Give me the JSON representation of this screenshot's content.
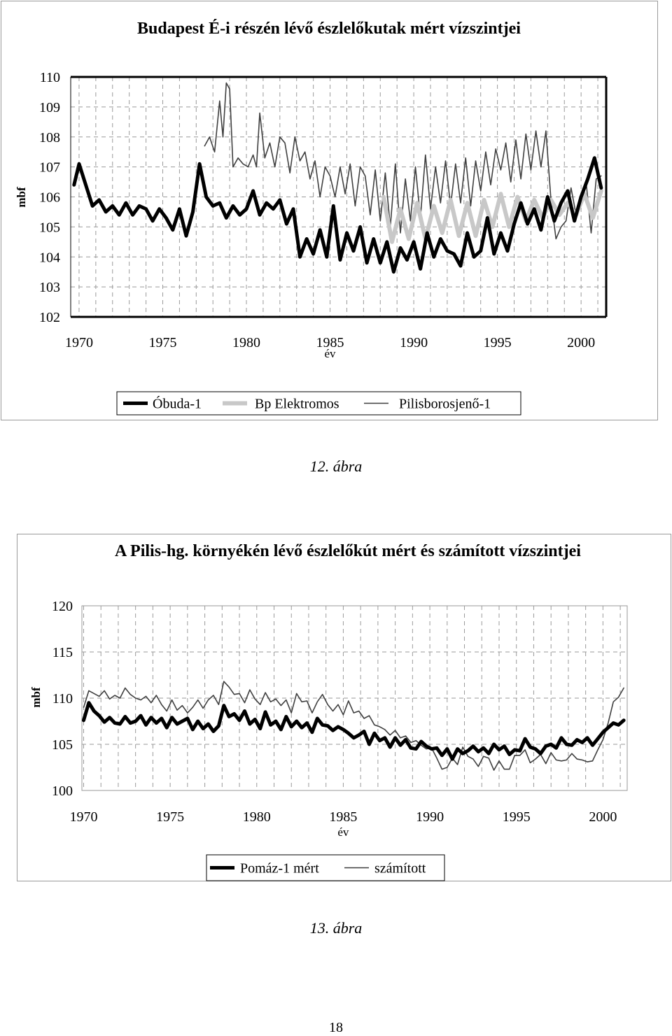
{
  "charts": [
    {
      "title": "Budapest É-i részén lévő észlelőkutak mért vízszintjei",
      "caption": "12. ábra",
      "chart_data": {
        "type": "line",
        "title": "Budapest É-i részén lévő észlelőkutak mért vízszintjei",
        "xlabel": "év",
        "ylabel": "mbf",
        "xlim": [
          1969.5,
          2001.5
        ],
        "ylim": [
          102,
          110
        ],
        "xticks": [
          1970,
          1975,
          1980,
          1985,
          1990,
          1995,
          2000
        ],
        "yticks": [
          102,
          103,
          104,
          105,
          106,
          107,
          108,
          109,
          110
        ],
        "grid": true,
        "legend": "bottom",
        "series": [
          {
            "name": "Óbuda-1",
            "style": "thick-black",
            "x": [
              1969.7,
              1970.0,
              1970.4,
              1970.8,
              1971.2,
              1971.6,
              1972.0,
              1972.4,
              1972.8,
              1973.2,
              1973.6,
              1974.0,
              1974.4,
              1974.8,
              1975.2,
              1975.6,
              1976.0,
              1976.4,
              1976.8,
              1977.2,
              1977.6,
              1978.0,
              1978.4,
              1978.8,
              1979.2,
              1979.6,
              1980.0,
              1980.4,
              1980.8,
              1981.2,
              1981.6,
              1982.0,
              1982.4,
              1982.8,
              1983.2,
              1983.6,
              1984.0,
              1984.4,
              1984.8,
              1985.2,
              1985.6,
              1986.0,
              1986.4,
              1986.8,
              1987.2,
              1987.6,
              1988.0,
              1988.4,
              1988.8,
              1989.2,
              1989.6,
              1990.0,
              1990.4,
              1990.8,
              1991.2,
              1991.6,
              1992.0,
              1992.4,
              1992.8,
              1993.2,
              1993.6,
              1994.0,
              1994.4,
              1994.8,
              1995.2,
              1995.6,
              1996.0,
              1996.4,
              1996.8,
              1997.2,
              1997.6,
              1998.0,
              1998.4,
              1998.8,
              1999.2,
              1999.6,
              2000.0,
              2000.4,
              2000.8,
              2001.2
            ],
            "values": [
              106.4,
              107.1,
              106.4,
              105.7,
              105.9,
              105.5,
              105.7,
              105.4,
              105.8,
              105.4,
              105.7,
              105.6,
              105.2,
              105.6,
              105.3,
              104.9,
              105.6,
              104.7,
              105.5,
              107.1,
              106.0,
              105.7,
              105.8,
              105.3,
              105.7,
              105.4,
              105.6,
              106.2,
              105.4,
              105.8,
              105.6,
              105.9,
              105.1,
              105.6,
              104.0,
              104.6,
              104.1,
              104.9,
              104.0,
              105.7,
              103.9,
              104.8,
              104.2,
              105.0,
              103.8,
              104.6,
              103.8,
              104.5,
              103.5,
              104.3,
              103.9,
              104.5,
              103.6,
              104.8,
              104.0,
              104.6,
              104.2,
              104.1,
              103.7,
              104.8,
              104.0,
              104.2,
              105.3,
              104.1,
              104.8,
              104.2,
              105.1,
              105.8,
              105.1,
              105.6,
              104.9,
              106.0,
              105.2,
              105.8,
              106.2,
              105.2,
              106.0,
              106.6,
              107.3,
              106.3
            ]
          },
          {
            "name": "Bp Elektromos",
            "style": "thick-gray",
            "x": [
              1988.2,
              1988.7,
              1989.2,
              1989.7,
              1990.2,
              1990.7,
              1991.2,
              1991.7,
              1992.2,
              1992.7,
              1993.2,
              1993.7,
              1994.2,
              1994.7,
              1995.2,
              1995.7,
              1996.2,
              1996.7,
              1997.2,
              1997.7,
              1998.2,
              1998.7,
              1999.2,
              1999.7,
              2000.2,
              2000.7,
              2001.2
            ],
            "values": [
              106.0,
              104.5,
              105.6,
              104.6,
              105.8,
              104.6,
              105.7,
              104.8,
              105.9,
              104.7,
              105.8,
              104.7,
              105.9,
              105.0,
              106.1,
              105.0,
              106.0,
              105.2,
              105.9,
              105.3,
              105.9,
              105.4,
              105.8,
              105.4,
              106.1,
              105.3,
              106.2
            ]
          },
          {
            "name": "Pilisborosjenő-1",
            "style": "thin-dark",
            "x": [
              1977.5,
              1977.8,
              1978.1,
              1978.4,
              1978.6,
              1978.8,
              1979.0,
              1979.2,
              1979.5,
              1979.8,
              1980.1,
              1980.4,
              1980.6,
              1980.8,
              1981.1,
              1981.4,
              1981.7,
              1982.0,
              1982.3,
              1982.6,
              1982.9,
              1983.2,
              1983.5,
              1983.8,
              1984.1,
              1984.4,
              1984.7,
              1985.0,
              1985.3,
              1985.6,
              1985.9,
              1986.2,
              1986.5,
              1986.8,
              1987.1,
              1987.4,
              1987.7,
              1988.0,
              1988.3,
              1988.6,
              1988.9,
              1989.2,
              1989.5,
              1989.8,
              1990.1,
              1990.4,
              1990.7,
              1991.0,
              1991.3,
              1991.6,
              1991.9,
              1992.2,
              1992.5,
              1992.8,
              1993.1,
              1993.4,
              1993.7,
              1994.0,
              1994.3,
              1994.6,
              1994.9,
              1995.2,
              1995.5,
              1995.8,
              1996.1,
              1996.4,
              1996.7,
              1997.0,
              1997.3,
              1997.6,
              1997.9,
              1998.2,
              1998.5,
              1998.8,
              1999.1,
              1999.4,
              1999.7,
              2000.0,
              2000.3,
              2000.6,
              2000.9,
              2001.2
            ],
            "values": [
              107.7,
              108.0,
              107.5,
              109.2,
              108.0,
              109.8,
              109.6,
              107.0,
              107.3,
              107.1,
              107.0,
              107.4,
              107.0,
              108.8,
              107.3,
              107.8,
              107.0,
              108.0,
              107.8,
              106.8,
              108.0,
              107.2,
              107.5,
              106.6,
              107.2,
              106.0,
              107.0,
              106.7,
              106.0,
              107.0,
              106.1,
              107.1,
              105.7,
              107.0,
              106.7,
              105.4,
              106.9,
              105.2,
              106.8,
              105.0,
              107.1,
              104.8,
              106.6,
              105.2,
              107.0,
              105.3,
              107.4,
              105.6,
              107.0,
              105.8,
              107.2,
              105.7,
              107.1,
              105.8,
              107.3,
              105.7,
              107.2,
              106.2,
              107.5,
              106.4,
              107.6,
              106.9,
              107.8,
              106.5,
              107.9,
              106.6,
              108.1,
              106.9,
              108.2,
              107.0,
              108.2,
              105.9,
              104.6,
              105.0,
              105.2,
              106.3,
              105.4,
              106.0,
              106.5,
              104.8,
              106.6,
              106.7
            ]
          }
        ]
      }
    },
    {
      "title": "A Pilis-hg. környékén lévő észlelőkút mért és számított vízszintjei",
      "caption": "13. ábra",
      "chart_data": {
        "type": "line",
        "title": "A Pilis-hg. környékén lévő észlelőkút mért és számított vízszintjei",
        "xlabel": "év",
        "ylabel": "mbf",
        "xlim": [
          1969.9,
          2001.4
        ],
        "ylim": [
          100,
          120
        ],
        "xticks": [
          1970,
          1975,
          1980,
          1985,
          1990,
          1995,
          2000
        ],
        "yticks": [
          100,
          105,
          110,
          115,
          120
        ],
        "grid": true,
        "legend": "bottom",
        "series": [
          {
            "name": "Pomáz-1 mért",
            "style": "thick-black",
            "x": [
              1970.0,
              1970.3,
              1970.6,
              1970.9,
              1971.2,
              1971.5,
              1971.8,
              1972.1,
              1972.4,
              1972.7,
              1973.0,
              1973.3,
              1973.6,
              1973.9,
              1974.2,
              1974.5,
              1974.8,
              1975.1,
              1975.4,
              1975.7,
              1976.0,
              1976.3,
              1976.6,
              1976.9,
              1977.2,
              1977.5,
              1977.8,
              1978.1,
              1978.4,
              1978.7,
              1979.0,
              1979.3,
              1979.6,
              1979.9,
              1980.2,
              1980.5,
              1980.8,
              1981.1,
              1981.4,
              1981.7,
              1982.0,
              1982.3,
              1982.6,
              1982.9,
              1983.2,
              1983.5,
              1983.8,
              1984.1,
              1984.4,
              1984.7,
              1985.0,
              1985.3,
              1985.6,
              1985.9,
              1986.2,
              1986.5,
              1986.8,
              1987.1,
              1987.4,
              1987.7,
              1988.0,
              1988.3,
              1988.6,
              1988.9,
              1989.2,
              1989.5,
              1989.8,
              1990.1,
              1990.4,
              1990.7,
              1991.0,
              1991.3,
              1991.6,
              1991.9,
              1992.2,
              1992.5,
              1992.8,
              1993.1,
              1993.4,
              1993.7,
              1994.0,
              1994.3,
              1994.6,
              1994.9,
              1995.2,
              1995.5,
              1995.8,
              1996.1,
              1996.4,
              1996.7,
              1997.0,
              1997.3,
              1997.6,
              1997.9,
              1998.2,
              1998.5,
              1998.8,
              1999.1,
              1999.4,
              1999.7,
              2000.0,
              2000.3,
              2000.6,
              2000.9,
              2001.2
            ],
            "values": [
              107.6,
              109.5,
              108.6,
              108.1,
              107.4,
              107.9,
              107.3,
              107.2,
              108.0,
              107.3,
              107.5,
              108.1,
              107.1,
              107.9,
              107.3,
              107.8,
              106.8,
              107.9,
              107.2,
              107.5,
              107.8,
              106.6,
              107.5,
              106.7,
              107.2,
              106.4,
              107.0,
              109.2,
              108.0,
              108.3,
              107.6,
              108.6,
              107.2,
              107.7,
              106.7,
              108.5,
              107.1,
              107.5,
              106.6,
              108.0,
              106.9,
              107.5,
              106.8,
              107.3,
              106.3,
              107.8,
              107.1,
              107.0,
              106.5,
              106.9,
              106.6,
              106.2,
              105.7,
              106.0,
              106.4,
              105.0,
              106.2,
              105.4,
              105.7,
              104.7,
              105.7,
              104.9,
              105.5,
              104.6,
              104.5,
              105.3,
              104.8,
              104.5,
              104.6,
              103.8,
              104.5,
              103.4,
              104.5,
              104.0,
              104.3,
              104.8,
              104.2,
              104.6,
              104.0,
              105.0,
              104.4,
              104.8,
              103.9,
              104.4,
              104.3,
              105.6,
              104.7,
              104.5,
              104.0,
              104.8,
              105.0,
              104.6,
              105.7,
              105.0,
              104.9,
              105.5,
              105.2,
              105.7,
              104.9,
              105.6,
              106.3,
              106.8,
              107.3,
              107.1,
              107.6
            ]
          },
          {
            "name": "számított",
            "style": "thin-dark",
            "x": [
              1970.0,
              1970.3,
              1970.6,
              1970.9,
              1971.2,
              1971.5,
              1971.8,
              1972.1,
              1972.4,
              1972.7,
              1973.0,
              1973.3,
              1973.6,
              1973.9,
              1974.2,
              1974.5,
              1974.8,
              1975.1,
              1975.4,
              1975.7,
              1976.0,
              1976.3,
              1976.6,
              1976.9,
              1977.2,
              1977.5,
              1977.8,
              1978.1,
              1978.4,
              1978.7,
              1979.0,
              1979.3,
              1979.6,
              1979.9,
              1980.2,
              1980.5,
              1980.8,
              1981.1,
              1981.4,
              1981.7,
              1982.0,
              1982.3,
              1982.6,
              1982.9,
              1983.2,
              1983.5,
              1983.8,
              1984.1,
              1984.4,
              1984.7,
              1985.0,
              1985.3,
              1985.6,
              1985.9,
              1986.2,
              1986.5,
              1986.8,
              1987.1,
              1987.4,
              1987.7,
              1988.0,
              1988.3,
              1988.6,
              1988.9,
              1989.2,
              1989.5,
              1989.8,
              1990.1,
              1990.4,
              1990.7,
              1991.0,
              1991.3,
              1991.6,
              1991.9,
              1992.2,
              1992.5,
              1992.8,
              1993.1,
              1993.4,
              1993.7,
              1994.0,
              1994.3,
              1994.6,
              1994.9,
              1995.2,
              1995.5,
              1995.8,
              1996.1,
              1996.4,
              1996.7,
              1997.0,
              1997.3,
              1997.6,
              1997.9,
              1998.2,
              1998.5,
              1998.8,
              1999.1,
              1999.4,
              1999.7,
              2000.0,
              2000.3,
              2000.6,
              2000.9,
              2001.2
            ],
            "values": [
              109.0,
              110.8,
              110.5,
              110.2,
              110.8,
              109.9,
              110.3,
              110.0,
              111.1,
              110.4,
              110.0,
              109.8,
              110.2,
              109.5,
              110.3,
              109.3,
              108.6,
              109.8,
              108.7,
              109.2,
              108.4,
              109.0,
              109.8,
              108.9,
              109.8,
              110.3,
              109.3,
              111.8,
              111.2,
              110.4,
              110.5,
              109.5,
              110.9,
              109.9,
              109.3,
              110.6,
              109.6,
              109.9,
              109.2,
              109.8,
              108.4,
              110.5,
              109.6,
              109.7,
              108.4,
              109.6,
              110.4,
              109.3,
              108.6,
              109.3,
              108.2,
              109.7,
              108.4,
              108.6,
              107.8,
              108.1,
              107.1,
              106.9,
              106.6,
              106.0,
              106.5,
              105.7,
              105.9,
              105.2,
              105.4,
              104.9,
              104.5,
              104.6,
              103.5,
              102.3,
              102.5,
              103.5,
              102.8,
              104.7,
              103.7,
              103.4,
              102.6,
              103.7,
              103.5,
              102.2,
              103.2,
              102.3,
              102.3,
              103.8,
              103.8,
              104.4,
              103.0,
              103.4,
              103.9,
              102.9,
              104.1,
              103.3,
              103.2,
              103.3,
              104.0,
              103.4,
              103.3,
              103.1,
              103.2,
              104.4,
              105.5,
              107.3,
              109.6,
              110.1,
              111.1
            ]
          }
        ]
      }
    }
  ],
  "page_number": "18"
}
